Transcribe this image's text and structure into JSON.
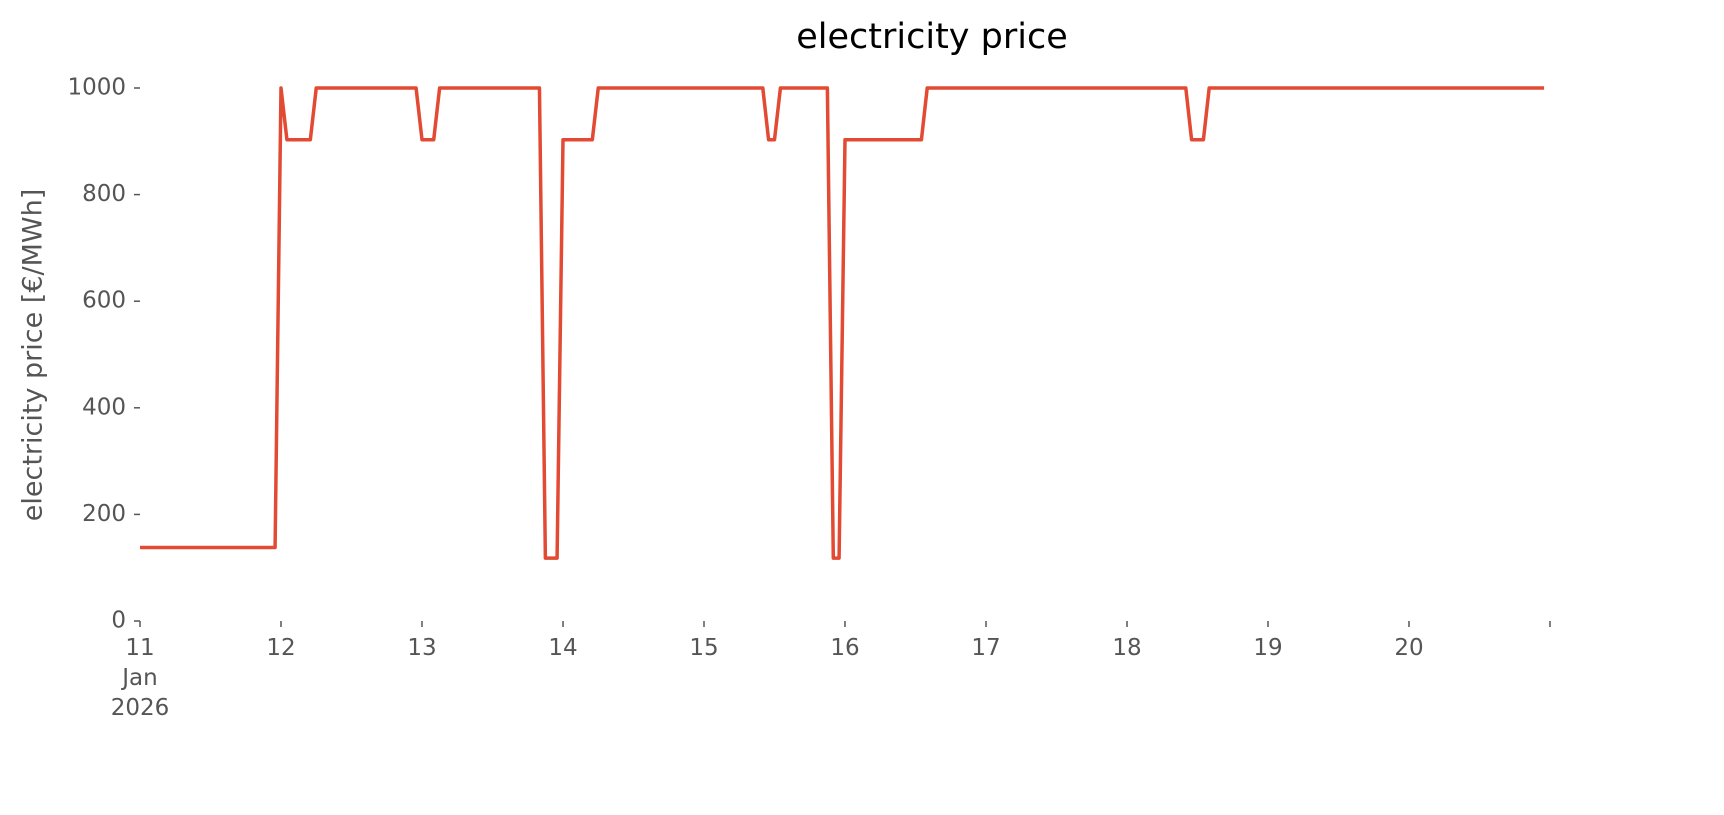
{
  "chart_data": {
    "type": "line",
    "title": "electricity price",
    "ylabel": "electricity price [€/MWh]",
    "x": [
      11.0,
      11.958,
      12.0,
      12.042,
      12.208,
      12.25,
      12.958,
      13.0,
      13.083,
      13.125,
      13.833,
      13.875,
      13.958,
      14.0,
      14.208,
      14.25,
      15.417,
      15.458,
      15.5,
      15.542,
      15.875,
      15.917,
      15.958,
      16.0,
      16.542,
      16.583,
      18.417,
      18.458,
      18.542,
      18.583,
      20.958
    ],
    "series": [
      {
        "name": "electricity price",
        "color": "#e24a33",
        "values": [
          138,
          138,
          1000,
          903,
          903,
          1000,
          1000,
          903,
          903,
          1000,
          1000,
          118,
          118,
          903,
          903,
          1000,
          1000,
          903,
          903,
          1000,
          1000,
          118,
          118,
          903,
          903,
          1000,
          1000,
          903,
          903,
          1000,
          1000
        ]
      }
    ],
    "xlim": [
      11,
      21
    ],
    "xticks": [
      {
        "value": 11,
        "label": "11\nJan\n2026"
      },
      12,
      13,
      14,
      15,
      16,
      17,
      18,
      19,
      20,
      {
        "value": 21,
        "label": null
      }
    ],
    "ylim": [
      0,
      1000
    ],
    "yticks": [
      0,
      200,
      400,
      600,
      800,
      1000
    ],
    "grid": false
  }
}
